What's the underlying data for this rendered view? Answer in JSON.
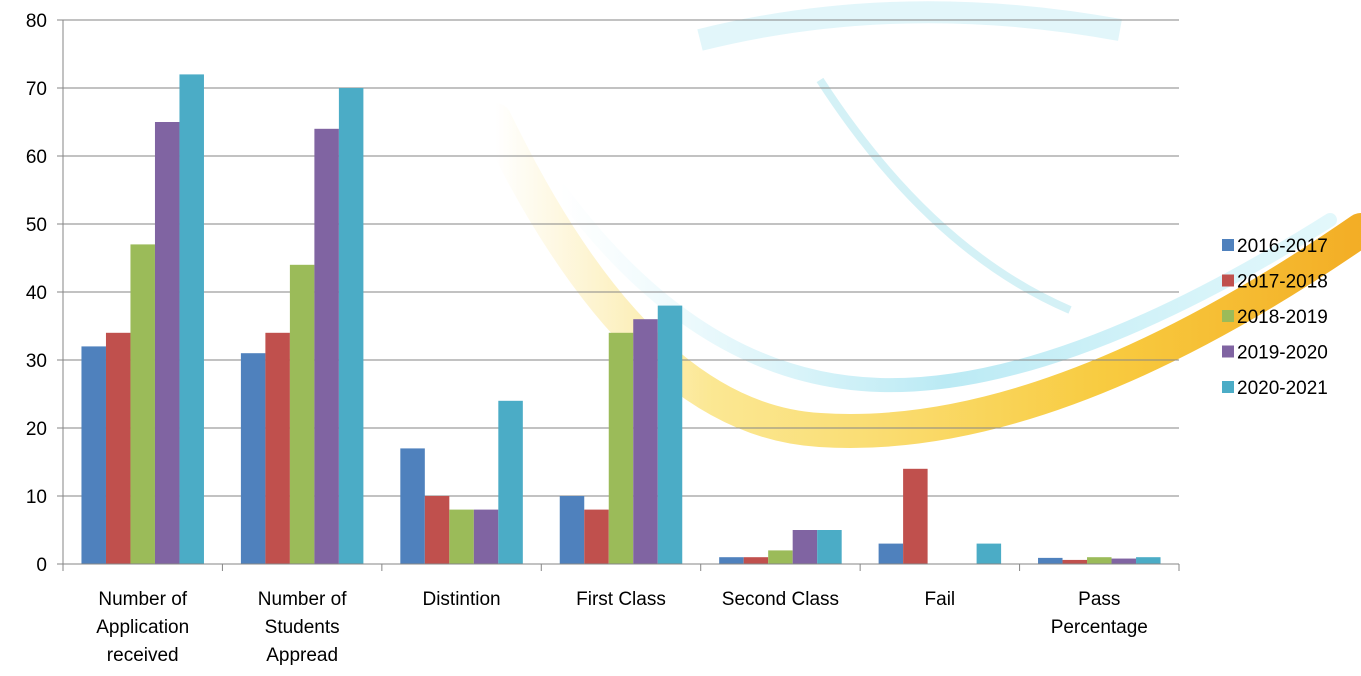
{
  "chart_data": {
    "type": "bar",
    "title": "",
    "xlabel": "",
    "ylabel": "",
    "ylim": [
      0,
      80
    ],
    "yticks": [
      0,
      10,
      20,
      30,
      40,
      50,
      60,
      70,
      80
    ],
    "grid": true,
    "legend_position": "right",
    "categories": [
      [
        "Number of",
        "Application",
        "received"
      ],
      [
        "Number of",
        "Students",
        "Appread"
      ],
      [
        "Distintion"
      ],
      [
        "First Class"
      ],
      [
        "Second Class"
      ],
      [
        "Fail"
      ],
      [
        "Pass",
        "Percentage"
      ]
    ],
    "series": [
      {
        "name": "2016-2017",
        "color": "#4F81BD",
        "values": [
          32,
          31,
          17,
          10,
          1,
          3,
          0.9
        ]
      },
      {
        "name": "2017-2018",
        "color": "#C0504D",
        "values": [
          34,
          34,
          10,
          8,
          1,
          14,
          0.6
        ]
      },
      {
        "name": "2018-2019",
        "color": "#9BBB59",
        "values": [
          47,
          44,
          8,
          34,
          2,
          0,
          1
        ]
      },
      {
        "name": "2019-2020",
        "color": "#8064A2",
        "values": [
          65,
          64,
          8,
          36,
          5,
          0,
          0.8
        ]
      },
      {
        "name": "2020-2021",
        "color": "#4BACC6",
        "values": [
          72,
          70,
          24,
          38,
          5,
          3,
          1
        ]
      }
    ]
  }
}
